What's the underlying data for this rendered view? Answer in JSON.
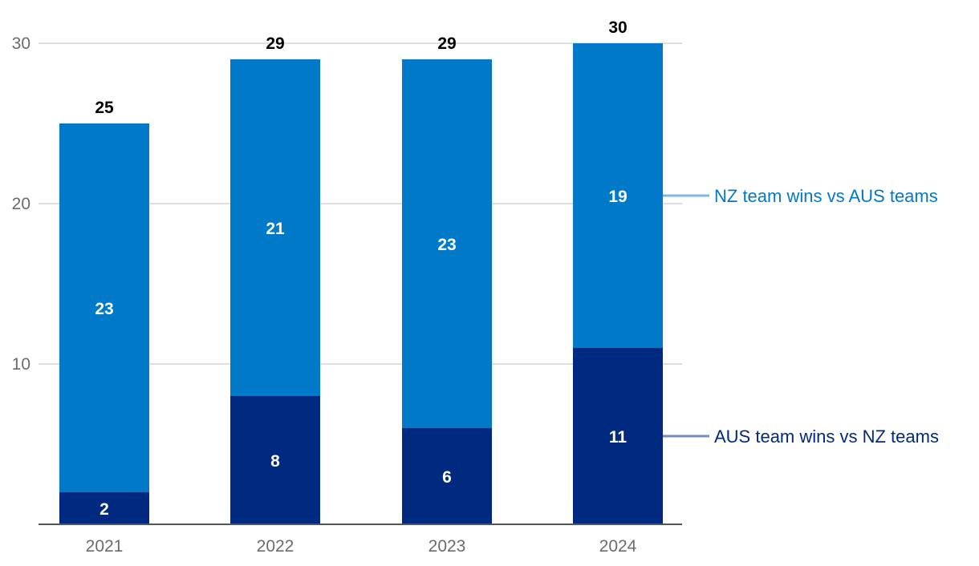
{
  "chart_data": {
    "type": "bar",
    "stacked": true,
    "title": "",
    "xlabel": "",
    "ylabel": "",
    "categories": [
      "2021",
      "2022",
      "2023",
      "2024"
    ],
    "series": [
      {
        "name": "AUS team wins vs NZ teams",
        "values": [
          2,
          8,
          6,
          11
        ],
        "color": "#002a7f"
      },
      {
        "name": "NZ team wins vs AUS teams",
        "values": [
          23,
          21,
          23,
          19
        ],
        "color": "#0079c8"
      }
    ],
    "totals": [
      25,
      29,
      29,
      30
    ],
    "ylim": [
      0,
      30
    ],
    "yticks": [
      10,
      20,
      30
    ],
    "grid": true,
    "legend_placement": "right",
    "colors": {
      "grid": "#cccccc",
      "axis": "#555555",
      "aus_legend_line": "#6f8fc4",
      "nz_legend_line": "#7fb8e0",
      "aus_legend_text": "#002a7f",
      "nz_legend_text": "#0079c8"
    }
  }
}
